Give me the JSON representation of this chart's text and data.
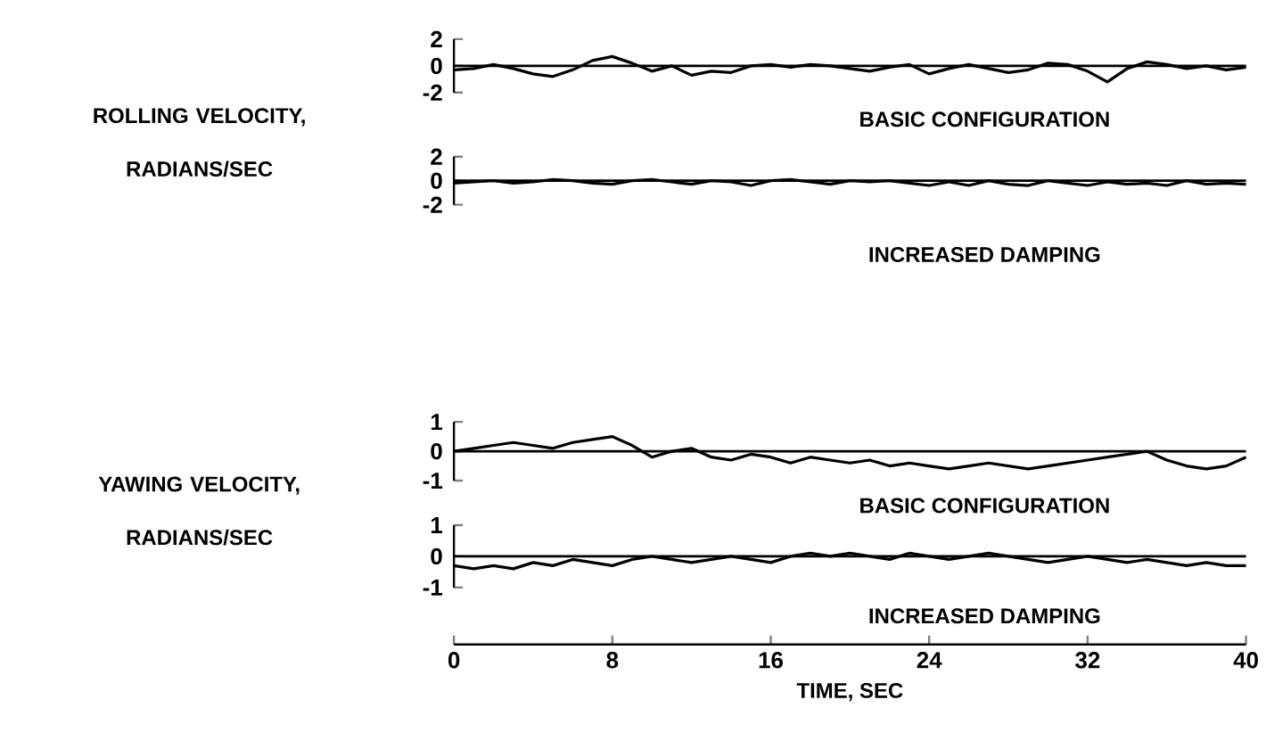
{
  "chart_data": [
    {
      "type": "line",
      "ylabel": "ROLLING VELOCITY, RADIANS/SEC",
      "annotations": [
        "BASIC CONFIGURATION"
      ],
      "x": [
        0,
        1,
        2,
        3,
        4,
        5,
        6,
        7,
        8,
        9,
        10,
        11,
        12,
        13,
        14,
        15,
        16,
        17,
        18,
        19,
        20,
        21,
        22,
        23,
        24,
        25,
        26,
        27,
        28,
        29,
        30,
        31,
        32,
        33,
        34,
        35,
        36,
        37,
        38,
        39,
        40
      ],
      "xlim": [
        0,
        40
      ],
      "ylim": [
        -2,
        2
      ],
      "yticks": [
        -2,
        0,
        2
      ],
      "tick_labels": "y",
      "series": [
        {
          "color": "#000000",
          "values": [
            -0.3,
            -0.2,
            0.1,
            -0.2,
            -0.6,
            -0.8,
            -0.3,
            0.4,
            0.7,
            0.2,
            -0.4,
            0.0,
            -0.7,
            -0.4,
            -0.5,
            0.0,
            0.1,
            -0.1,
            0.1,
            0.0,
            -0.2,
            -0.4,
            -0.1,
            0.1,
            -0.6,
            -0.2,
            0.1,
            -0.2,
            -0.5,
            -0.3,
            0.2,
            0.1,
            -0.4,
            -1.2,
            -0.2,
            0.3,
            0.1,
            -0.2,
            0.0,
            -0.3,
            -0.1
          ]
        }
      ],
      "ref_lines": [
        {
          "axis": "y",
          "value": 0
        }
      ]
    },
    {
      "type": "line",
      "annotations": [
        "INCREASED DAMPING"
      ],
      "x": [
        0,
        1,
        2,
        3,
        4,
        5,
        6,
        7,
        8,
        9,
        10,
        11,
        12,
        13,
        14,
        15,
        16,
        17,
        18,
        19,
        20,
        21,
        22,
        23,
        24,
        25,
        26,
        27,
        28,
        29,
        30,
        31,
        32,
        33,
        34,
        35,
        36,
        37,
        38,
        39,
        40
      ],
      "xlim": [
        0,
        40
      ],
      "ylim": [
        -2,
        2
      ],
      "yticks": [
        -2,
        0,
        2
      ],
      "tick_labels": "y",
      "series": [
        {
          "color": "#000000",
          "values": [
            -0.2,
            -0.1,
            0.0,
            -0.2,
            -0.1,
            0.1,
            0.0,
            -0.2,
            -0.3,
            0.0,
            0.1,
            -0.1,
            -0.3,
            0.0,
            -0.1,
            -0.4,
            0.0,
            0.1,
            -0.1,
            -0.3,
            0.0,
            -0.1,
            0.0,
            -0.2,
            -0.4,
            -0.1,
            -0.4,
            0.0,
            -0.3,
            -0.4,
            0.0,
            -0.2,
            -0.4,
            -0.1,
            -0.3,
            -0.2,
            -0.4,
            0.0,
            -0.3,
            -0.2,
            -0.3
          ]
        }
      ],
      "ref_lines": [
        {
          "axis": "y",
          "value": 0
        }
      ]
    },
    {
      "type": "line",
      "ylabel": "YAWING VELOCITY, RADIANS/SEC",
      "annotations": [
        "BASIC CONFIGURATION"
      ],
      "x": [
        0,
        1,
        2,
        3,
        4,
        5,
        6,
        7,
        8,
        9,
        10,
        11,
        12,
        13,
        14,
        15,
        16,
        17,
        18,
        19,
        20,
        21,
        22,
        23,
        24,
        25,
        26,
        27,
        28,
        29,
        30,
        31,
        32,
        33,
        34,
        35,
        36,
        37,
        38,
        39,
        40
      ],
      "xlim": [
        0,
        40
      ],
      "ylim": [
        -1,
        1
      ],
      "yticks": [
        -1,
        0,
        1
      ],
      "tick_labels": "y",
      "series": [
        {
          "color": "#000000",
          "values": [
            0.0,
            0.1,
            0.2,
            0.3,
            0.2,
            0.1,
            0.3,
            0.4,
            0.5,
            0.2,
            -0.2,
            0.0,
            0.1,
            -0.2,
            -0.3,
            -0.1,
            -0.2,
            -0.4,
            -0.2,
            -0.3,
            -0.4,
            -0.3,
            -0.5,
            -0.4,
            -0.5,
            -0.6,
            -0.5,
            -0.4,
            -0.5,
            -0.6,
            -0.5,
            -0.4,
            -0.3,
            -0.2,
            -0.1,
            0.0,
            -0.3,
            -0.5,
            -0.6,
            -0.5,
            -0.2
          ]
        }
      ],
      "ref_lines": [
        {
          "axis": "y",
          "value": 0
        }
      ]
    },
    {
      "type": "line",
      "xlabel": "TIME, SEC",
      "annotations": [
        "INCREASED DAMPING"
      ],
      "x": [
        0,
        1,
        2,
        3,
        4,
        5,
        6,
        7,
        8,
        9,
        10,
        11,
        12,
        13,
        14,
        15,
        16,
        17,
        18,
        19,
        20,
        21,
        22,
        23,
        24,
        25,
        26,
        27,
        28,
        29,
        30,
        31,
        32,
        33,
        34,
        35,
        36,
        37,
        38,
        39,
        40
      ],
      "xlim": [
        0,
        40
      ],
      "xticks": [
        0,
        8,
        16,
        24,
        32,
        40
      ],
      "ylim": [
        -1,
        1
      ],
      "yticks": [
        -1,
        0,
        1
      ],
      "series": [
        {
          "color": "#000000",
          "values": [
            -0.3,
            -0.4,
            -0.3,
            -0.4,
            -0.2,
            -0.3,
            -0.1,
            -0.2,
            -0.3,
            -0.1,
            0.0,
            -0.1,
            -0.2,
            -0.1,
            0.0,
            -0.1,
            -0.2,
            0.0,
            0.1,
            0.0,
            0.1,
            0.0,
            -0.1,
            0.1,
            0.0,
            -0.1,
            0.0,
            0.1,
            0.0,
            -0.1,
            -0.2,
            -0.1,
            0.0,
            -0.1,
            -0.2,
            -0.1,
            -0.2,
            -0.3,
            -0.2,
            -0.3,
            -0.3
          ]
        }
      ],
      "ref_lines": [
        {
          "axis": "y",
          "value": 0
        }
      ]
    }
  ]
}
